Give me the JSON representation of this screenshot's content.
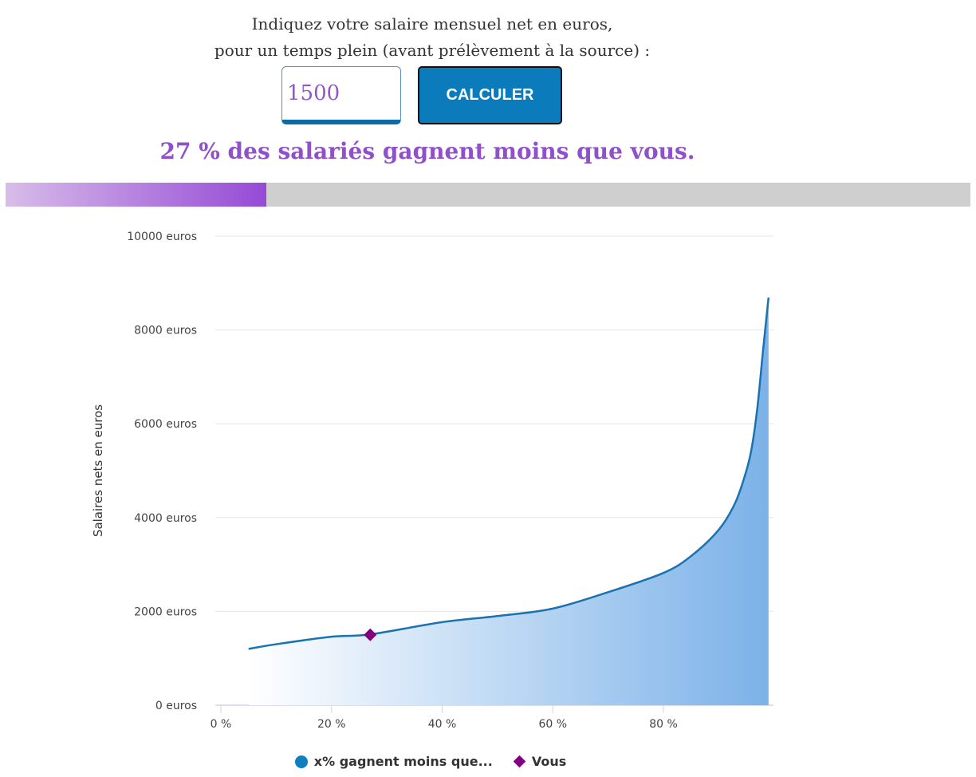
{
  "form": {
    "prompt_line1": "Indiquez votre salaire mensuel net en euros,",
    "prompt_line2": "pour un temps plein (avant prélèvement à la source) :",
    "salary_value": "1500",
    "calculate_label": "CALCULER"
  },
  "result": {
    "text": "27 % des salariés gagnent moins que vous.",
    "percent": 27
  },
  "colors": {
    "accent": "#9050cc",
    "button": "#0b7bbc",
    "line": "#1a73b0",
    "fill": "#7cb2e8",
    "marker": "#800080"
  },
  "chart_data": {
    "type": "area",
    "ylabel": "Salaires nets en euros",
    "xlabel": "",
    "ylim": [
      0,
      10000
    ],
    "xlim": [
      0,
      100
    ],
    "yticks": [
      "0 euros",
      "2000 euros",
      "4000 euros",
      "6000 euros",
      "8000 euros",
      "10000 euros"
    ],
    "xticks": [
      "0 %",
      "20 %",
      "40 %",
      "60 %",
      "80 %"
    ],
    "grid": true,
    "legend_position": "bottom",
    "series": [
      {
        "name": "x% gagnent moins que...",
        "x": [
          5,
          10,
          20,
          27,
          40,
          50,
          60,
          70,
          80,
          85,
          90,
          93,
          95,
          96,
          97,
          98,
          99
        ],
        "y": [
          1200,
          1300,
          1460,
          1510,
          1770,
          1900,
          2060,
          2410,
          2820,
          3180,
          3740,
          4320,
          5000,
          5510,
          6360,
          7550,
          8690
        ]
      },
      {
        "name": "Vous",
        "x": [
          27
        ],
        "y": [
          1500
        ]
      }
    ]
  }
}
